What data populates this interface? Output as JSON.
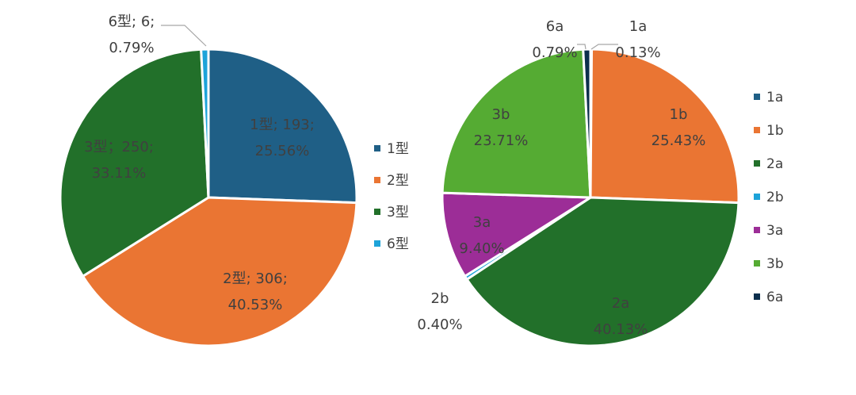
{
  "chart_data": [
    {
      "type": "pie",
      "title": "",
      "categories": [
        "1型",
        "2型",
        "3型",
        "6型"
      ],
      "values": [
        193,
        306,
        250,
        6
      ],
      "percents": [
        "25.56%",
        "40.53%",
        "33.11%",
        "0.79%"
      ],
      "colors": [
        "#1f5f86",
        "#ea7533",
        "#22702a",
        "#1da3d9"
      ],
      "labels": [
        [
          "1型; 193;",
          "25.56%"
        ],
        [
          "2型; 306;",
          "40.53%"
        ],
        [
          "3型；250;",
          "33.11%"
        ],
        [
          "6型; 6;",
          "0.79%"
        ]
      ],
      "legend": {
        "position": "right",
        "entries": [
          "1型",
          "2型",
          "3型",
          "6型"
        ]
      }
    },
    {
      "type": "pie",
      "title": "",
      "categories": [
        "1a",
        "1b",
        "2a",
        "2b",
        "3a",
        "3b",
        "6a"
      ],
      "values": [
        0.13,
        25.43,
        40.13,
        0.4,
        9.4,
        23.71,
        0.79
      ],
      "percents": [
        "0.13%",
        "25.43%",
        "40.13%",
        "0.40%",
        "9.40%",
        "23.71%",
        "0.79%"
      ],
      "colors": [
        "#1f5f86",
        "#ea7533",
        "#22702a",
        "#1da3d9",
        "#9c2d97",
        "#55ab33",
        "#0c2f4d"
      ],
      "labels": [
        [
          "1a",
          "0.13%"
        ],
        [
          "1b",
          "25.43%"
        ],
        [
          "2a",
          "40.13%"
        ],
        [
          "2b",
          "0.40%"
        ],
        [
          "3a",
          "9.40%"
        ],
        [
          "3b",
          "23.71%"
        ],
        [
          "6a",
          "0.79%"
        ]
      ],
      "legend": {
        "position": "right",
        "entries": [
          "1a",
          "1b",
          "2a",
          "2b",
          "3a",
          "3b",
          "6a"
        ]
      }
    }
  ]
}
